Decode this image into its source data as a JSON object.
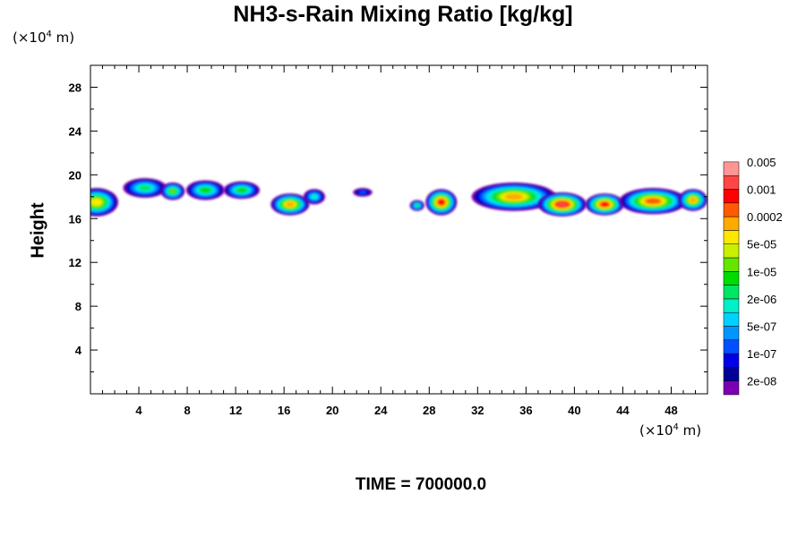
{
  "chart_data": {
    "type": "heatmap",
    "title": "NH3-s-Rain Mixing Ratio [kg/kg]",
    "xlabel": "",
    "ylabel": "Height",
    "x_unit_prefix": "(×10",
    "x_unit_exp": "4",
    "x_unit_suffix": " m)",
    "y_unit_prefix": "(×10",
    "y_unit_exp": "4",
    "y_unit_suffix": " m)",
    "xlim": [
      0,
      51
    ],
    "ylim": [
      0,
      30
    ],
    "xticks": [
      4,
      8,
      12,
      16,
      20,
      24,
      28,
      32,
      36,
      40,
      44,
      48
    ],
    "yticks": [
      4,
      8,
      12,
      16,
      20,
      24,
      28
    ],
    "footer": "TIME = 700000.0",
    "colorbar": {
      "colors": [
        "#7b00b4",
        "#000096",
        "#0000e6",
        "#0050ff",
        "#0096ff",
        "#00d2ff",
        "#00f0c8",
        "#00e664",
        "#00dc00",
        "#64e600",
        "#c8f000",
        "#ffe600",
        "#ffaa00",
        "#ff5a00",
        "#ff0000",
        "#ff4646",
        "#ff9696"
      ],
      "labels": [
        "2e-08",
        "1e-07",
        "5e-07",
        "2e-06",
        "1e-05",
        "5e-05",
        "0.0002",
        "0.001",
        "0.005"
      ]
    },
    "cloud_blobs": [
      {
        "x": 0.5,
        "y": 17.5,
        "rx": 1.8,
        "ry": 1.3,
        "level": 11
      },
      {
        "x": 4.5,
        "y": 18.8,
        "rx": 1.8,
        "ry": 0.9,
        "level": 7
      },
      {
        "x": 6.8,
        "y": 18.5,
        "rx": 1.0,
        "ry": 0.8,
        "level": 9
      },
      {
        "x": 9.5,
        "y": 18.6,
        "rx": 1.6,
        "ry": 0.9,
        "level": 8
      },
      {
        "x": 12.5,
        "y": 18.6,
        "rx": 1.5,
        "ry": 0.8,
        "level": 8
      },
      {
        "x": 16.5,
        "y": 17.3,
        "rx": 1.6,
        "ry": 1.0,
        "level": 12
      },
      {
        "x": 18.5,
        "y": 18.0,
        "rx": 0.9,
        "ry": 0.7,
        "level": 6
      },
      {
        "x": 22.5,
        "y": 18.4,
        "rx": 0.8,
        "ry": 0.4,
        "level": 3
      },
      {
        "x": 27.0,
        "y": 17.2,
        "rx": 0.6,
        "ry": 0.5,
        "level": 7
      },
      {
        "x": 29.0,
        "y": 17.5,
        "rx": 1.3,
        "ry": 1.2,
        "level": 14
      },
      {
        "x": 35.0,
        "y": 18.0,
        "rx": 3.5,
        "ry": 1.3,
        "level": 12
      },
      {
        "x": 39.0,
        "y": 17.3,
        "rx": 2.0,
        "ry": 1.1,
        "level": 15
      },
      {
        "x": 42.5,
        "y": 17.3,
        "rx": 1.6,
        "ry": 1.0,
        "level": 14
      },
      {
        "x": 46.5,
        "y": 17.6,
        "rx": 2.8,
        "ry": 1.2,
        "level": 13
      },
      {
        "x": 49.8,
        "y": 17.7,
        "rx": 1.2,
        "ry": 1.0,
        "level": 12
      }
    ]
  }
}
